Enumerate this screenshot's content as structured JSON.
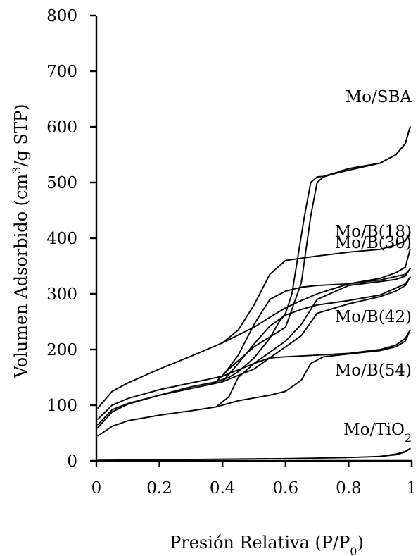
{
  "chart_data": {
    "type": "line",
    "xlabel": "Presión Relativa (P/P",
    "xlabel_sub": "0",
    "xlabel_end": ")",
    "ylabel": "Volumen Adsorbido (cm",
    "ylabel_sup": "3",
    "ylabel_end": "/g STP)",
    "xlim": [
      0,
      1
    ],
    "ylim": [
      0,
      800
    ],
    "x_ticks": [
      0,
      0.2,
      0.4,
      0.6,
      0.8,
      1
    ],
    "x_tick_labels": [
      "0",
      "0.2",
      "0.4",
      "0.6",
      "0.8",
      "1"
    ],
    "y_ticks": [
      0,
      100,
      200,
      300,
      400,
      500,
      600,
      700,
      800
    ],
    "y_tick_labels": [
      "0",
      "100",
      "200",
      "300",
      "400",
      "500",
      "600",
      "700",
      "800"
    ],
    "grid": false,
    "series": [
      {
        "name": "Mo/SBA",
        "adsorption": {
          "x": [
            0.005,
            0.05,
            0.1,
            0.2,
            0.3,
            0.38,
            0.42,
            0.5,
            0.6,
            0.65,
            0.68,
            0.7,
            0.72,
            0.75,
            0.8,
            0.9,
            0.95,
            0.98,
            0.995
          ],
          "y": [
            65,
            92,
            103,
            118,
            133,
            142,
            165,
            205,
            240,
            320,
            440,
            500,
            510,
            515,
            522,
            535,
            550,
            570,
            600
          ]
        },
        "desorption": {
          "x": [
            0.995,
            0.98,
            0.95,
            0.9,
            0.8,
            0.75,
            0.72,
            0.7,
            0.68,
            0.66,
            0.62,
            0.6,
            0.58,
            0.55,
            0.5,
            0.45,
            0.42,
            0.38
          ],
          "y": [
            600,
            570,
            550,
            535,
            525,
            516,
            511,
            510,
            500,
            440,
            300,
            265,
            250,
            220,
            185,
            160,
            150,
            142
          ]
        }
      },
      {
        "name": "Mo/B(18)",
        "adsorption": {
          "x": [
            0.005,
            0.05,
            0.1,
            0.2,
            0.3,
            0.4,
            0.5,
            0.55,
            0.6,
            0.65,
            0.7,
            0.8,
            0.9,
            0.95,
            0.98,
            0.995
          ],
          "y": [
            95,
            125,
            140,
            165,
            188,
            212,
            240,
            258,
            275,
            288,
            300,
            318,
            328,
            338,
            348,
            380
          ]
        },
        "desorption": {
          "x": [
            0.995,
            0.98,
            0.95,
            0.9,
            0.8,
            0.7,
            0.6,
            0.55,
            0.5,
            0.45,
            0.4
          ],
          "y": [
            410,
            395,
            388,
            380,
            375,
            368,
            360,
            335,
            280,
            235,
            212
          ]
        }
      },
      {
        "name": "Mo/B(30)",
        "adsorption": {
          "x": [
            0.005,
            0.05,
            0.1,
            0.2,
            0.3,
            0.4,
            0.5,
            0.6,
            0.65,
            0.7,
            0.8,
            0.9,
            0.95,
            0.98,
            0.995
          ],
          "y": [
            75,
            100,
            112,
            128,
            140,
            152,
            175,
            215,
            245,
            290,
            315,
            322,
            326,
            332,
            345
          ]
        },
        "desorption": {
          "x": [
            0.995,
            0.98,
            0.9,
            0.8,
            0.7,
            0.65,
            0.6,
            0.55,
            0.5,
            0.45,
            0.4
          ],
          "y": [
            345,
            335,
            325,
            318,
            315,
            312,
            305,
            290,
            245,
            190,
            152
          ]
        }
      },
      {
        "name": "Mo/B(42)",
        "adsorption": {
          "x": [
            0.005,
            0.05,
            0.1,
            0.2,
            0.3,
            0.4,
            0.5,
            0.6,
            0.65,
            0.7,
            0.8,
            0.9,
            0.95,
            0.98,
            0.995
          ],
          "y": [
            60,
            88,
            102,
            118,
            130,
            142,
            165,
            205,
            225,
            265,
            282,
            295,
            305,
            315,
            330
          ]
        },
        "desorption": {
          "x": [
            0.995,
            0.98,
            0.9,
            0.8,
            0.7,
            0.65,
            0.6,
            0.55,
            0.5,
            0.45,
            0.4
          ],
          "y": [
            330,
            318,
            298,
            288,
            280,
            272,
            262,
            242,
            210,
            175,
            142
          ]
        }
      },
      {
        "name": "Mo/B(54)",
        "adsorption": {
          "x": [
            0.005,
            0.05,
            0.1,
            0.2,
            0.3,
            0.38,
            0.45,
            0.55,
            0.6,
            0.65,
            0.68,
            0.72,
            0.8,
            0.9,
            0.95,
            0.98,
            0.995
          ],
          "y": [
            45,
            62,
            72,
            82,
            90,
            97,
            108,
            118,
            125,
            145,
            175,
            187,
            192,
            198,
            205,
            215,
            235
          ]
        },
        "desorption": {
          "x": [
            0.995,
            0.98,
            0.95,
            0.9,
            0.8,
            0.7,
            0.6,
            0.55,
            0.5,
            0.45,
            0.42,
            0.38
          ],
          "y": [
            235,
            220,
            208,
            200,
            193,
            190,
            187,
            185,
            175,
            150,
            115,
            97
          ]
        }
      },
      {
        "name": "Mo/TiO",
        "name_sub": "2",
        "adsorption": {
          "x": [
            0.005,
            0.2,
            0.4,
            0.6,
            0.8,
            0.9,
            0.95,
            0.98,
            0.995
          ],
          "y": [
            1,
            2,
            3,
            4,
            6,
            8,
            11,
            16,
            22
          ]
        },
        "desorption": {
          "x": [
            0.995,
            0.98,
            0.95,
            0.9
          ],
          "y": [
            22,
            17,
            12,
            8
          ]
        }
      }
    ]
  }
}
